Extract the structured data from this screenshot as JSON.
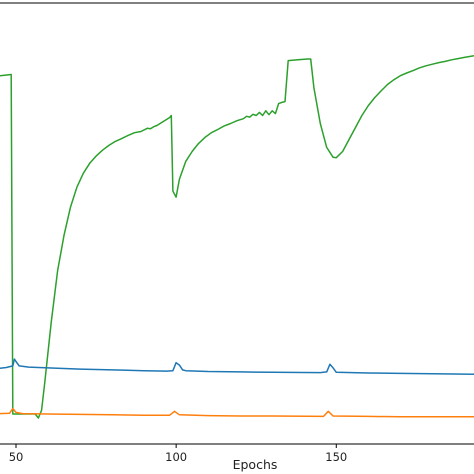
{
  "chart_data": {
    "type": "line",
    "xlabel": "Epochs",
    "ylabel": "",
    "title": "",
    "xlim": [
      45,
      193
    ],
    "ylim": [
      0,
      1
    ],
    "x_ticks": [
      50,
      100,
      150
    ],
    "grid": false,
    "legend": "none",
    "series": [
      {
        "color": "#2ca02c",
        "points": [
          [
            45,
            0.87
          ],
          [
            48.5,
            0.873
          ],
          [
            49,
            0.02
          ],
          [
            56,
            0.02
          ],
          [
            57,
            0.01
          ],
          [
            58,
            0.03
          ],
          [
            59,
            0.1
          ],
          [
            61,
            0.25
          ],
          [
            63,
            0.38
          ],
          [
            65,
            0.47
          ],
          [
            67,
            0.54
          ],
          [
            69,
            0.59
          ],
          [
            71,
            0.625
          ],
          [
            73,
            0.65
          ],
          [
            75,
            0.668
          ],
          [
            77,
            0.683
          ],
          [
            79,
            0.695
          ],
          [
            81,
            0.705
          ],
          [
            83,
            0.712
          ],
          [
            85,
            0.72
          ],
          [
            87,
            0.727
          ],
          [
            89,
            0.73
          ],
          [
            91,
            0.738
          ],
          [
            92,
            0.737
          ],
          [
            93,
            0.742
          ],
          [
            94,
            0.745
          ],
          [
            96,
            0.755
          ],
          [
            97,
            0.76
          ],
          [
            98,
            0.765
          ],
          [
            98.5,
            0.77
          ],
          [
            99,
            0.58
          ],
          [
            100,
            0.565
          ],
          [
            101,
            0.61
          ],
          [
            103,
            0.655
          ],
          [
            105,
            0.68
          ],
          [
            107,
            0.7
          ],
          [
            109,
            0.715
          ],
          [
            111,
            0.727
          ],
          [
            113,
            0.735
          ],
          [
            115,
            0.744
          ],
          [
            117,
            0.75
          ],
          [
            119,
            0.757
          ],
          [
            121,
            0.762
          ],
          [
            122,
            0.768
          ],
          [
            123,
            0.766
          ],
          [
            124,
            0.773
          ],
          [
            125,
            0.77
          ],
          [
            126,
            0.778
          ],
          [
            127,
            0.77
          ],
          [
            128,
            0.782
          ],
          [
            129,
            0.772
          ],
          [
            130,
            0.782
          ],
          [
            131,
            0.775
          ],
          [
            132,
            0.8
          ],
          [
            133,
            0.803
          ],
          [
            134,
            0.805
          ],
          [
            135,
            0.908
          ],
          [
            138,
            0.91
          ],
          [
            141,
            0.912
          ],
          [
            142,
            0.912
          ],
          [
            143,
            0.84
          ],
          [
            145,
            0.75
          ],
          [
            147,
            0.69
          ],
          [
            149,
            0.665
          ],
          [
            150,
            0.664
          ],
          [
            152,
            0.68
          ],
          [
            154,
            0.71
          ],
          [
            156,
            0.74
          ],
          [
            158,
            0.77
          ],
          [
            160,
            0.795
          ],
          [
            162,
            0.815
          ],
          [
            164,
            0.832
          ],
          [
            166,
            0.848
          ],
          [
            168,
            0.86
          ],
          [
            170,
            0.87
          ],
          [
            172,
            0.877
          ],
          [
            174,
            0.883
          ],
          [
            176,
            0.89
          ],
          [
            178,
            0.895
          ],
          [
            180,
            0.899
          ],
          [
            182,
            0.903
          ],
          [
            184,
            0.906
          ],
          [
            186,
            0.91
          ],
          [
            188,
            0.913
          ],
          [
            190,
            0.916
          ],
          [
            193,
            0.92
          ]
        ]
      },
      {
        "color": "#1f77b4",
        "points": [
          [
            45,
            0.135
          ],
          [
            47,
            0.137
          ],
          [
            49,
            0.141
          ],
          [
            49.5,
            0.158
          ],
          [
            50,
            0.152
          ],
          [
            51,
            0.141
          ],
          [
            54,
            0.138
          ],
          [
            60,
            0.136
          ],
          [
            70,
            0.133
          ],
          [
            80,
            0.131
          ],
          [
            90,
            0.129
          ],
          [
            97,
            0.128
          ],
          [
            99,
            0.129
          ],
          [
            100,
            0.149
          ],
          [
            101,
            0.143
          ],
          [
            102,
            0.131
          ],
          [
            103,
            0.129
          ],
          [
            110,
            0.127
          ],
          [
            120,
            0.126
          ],
          [
            130,
            0.125
          ],
          [
            145,
            0.124
          ],
          [
            147,
            0.126
          ],
          [
            148,
            0.145
          ],
          [
            149,
            0.136
          ],
          [
            150,
            0.125
          ],
          [
            160,
            0.123
          ],
          [
            170,
            0.122
          ],
          [
            180,
            0.121
          ],
          [
            193,
            0.12
          ]
        ]
      },
      {
        "color": "#ff7f0e",
        "points": [
          [
            45,
            0.021
          ],
          [
            48,
            0.022
          ],
          [
            49,
            0.034
          ],
          [
            50,
            0.024
          ],
          [
            52,
            0.021
          ],
          [
            60,
            0.02
          ],
          [
            70,
            0.019
          ],
          [
            80,
            0.018
          ],
          [
            90,
            0.017
          ],
          [
            98,
            0.017
          ],
          [
            99.5,
            0.027
          ],
          [
            101,
            0.018
          ],
          [
            110,
            0.016
          ],
          [
            120,
            0.015
          ],
          [
            130,
            0.015
          ],
          [
            146,
            0.014
          ],
          [
            147.5,
            0.027
          ],
          [
            149,
            0.015
          ],
          [
            160,
            0.014
          ],
          [
            170,
            0.013
          ],
          [
            180,
            0.013
          ],
          [
            193,
            0.013
          ]
        ]
      }
    ]
  }
}
